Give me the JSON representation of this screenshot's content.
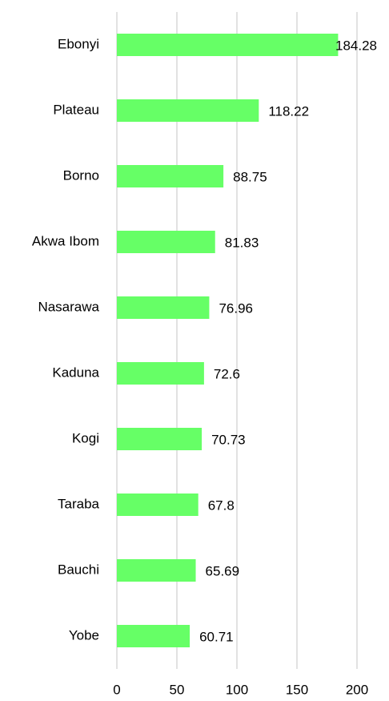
{
  "chart_data": {
    "type": "hbar",
    "categories": [
      "Ebonyi",
      "Plateau",
      "Borno",
      "Akwa Ibom",
      "Nasarawa",
      "Kaduna",
      "Kogi",
      "Taraba",
      "Bauchi",
      "Yobe"
    ],
    "values": [
      184.28,
      118.22,
      88.75,
      81.83,
      76.96,
      72.6,
      70.73,
      67.8,
      65.69,
      60.71
    ],
    "color": "#66ff66",
    "xlim": [
      0,
      200
    ],
    "xticks": [
      0,
      50,
      100,
      150,
      200
    ],
    "grid": true
  }
}
